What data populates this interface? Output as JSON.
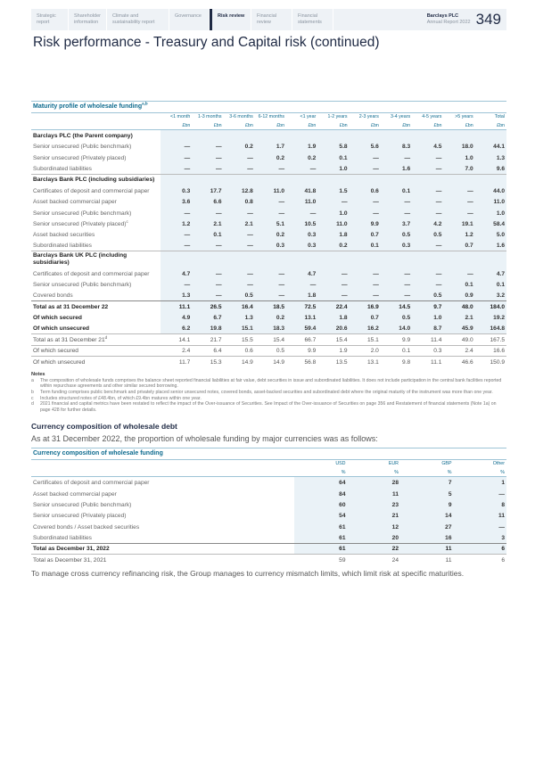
{
  "nav": {
    "items": [
      {
        "label": "Strategic report"
      },
      {
        "label": "Shareholder information"
      },
      {
        "label": "Climate and sustainability report"
      },
      {
        "label": "Governance"
      },
      {
        "label": "Risk review",
        "active": true
      },
      {
        "label": "Financial review"
      },
      {
        "label": "Financial statements"
      }
    ],
    "brand": "Barclays PLC",
    "brand_sub": "Annual Report 2022",
    "page": "349"
  },
  "title": "Risk performance - Treasury and Capital risk (continued)",
  "maturity": {
    "caption": "Maturity profile of wholesale funding",
    "caption_sup": "a,b",
    "columns": [
      "<1 month",
      "1-3 months",
      "3-6 months",
      "6-12 months",
      "<1 year",
      "1-2 years",
      "2-3 years",
      "3-4 years",
      "4-5 years",
      ">5 years",
      "Total"
    ],
    "unit": "£bn",
    "rows": [
      {
        "type": "sec",
        "label": "Barclays PLC (the Parent company)"
      },
      {
        "label": "Senior unsecured (Public benchmark)",
        "values": [
          "—",
          "—",
          "0.2",
          "1.7",
          "1.9",
          "5.8",
          "5.6",
          "8.3",
          "4.5",
          "18.0",
          "44.1"
        ]
      },
      {
        "label": "Senior unsecured (Privately placed)",
        "values": [
          "—",
          "—",
          "—",
          "0.2",
          "0.2",
          "0.1",
          "—",
          "—",
          "—",
          "1.0",
          "1.3"
        ]
      },
      {
        "label": "Subordinated liabilities",
        "values": [
          "—",
          "—",
          "—",
          "—",
          "—",
          "1.0",
          "—",
          "1.6",
          "—",
          "7.0",
          "9.6"
        ]
      },
      {
        "type": "sec",
        "label": "Barclays Bank PLC (including subsidiaries)",
        "bt": true
      },
      {
        "label": "Certificates of deposit and commercial paper",
        "values": [
          "0.3",
          "17.7",
          "12.8",
          "11.0",
          "41.8",
          "1.5",
          "0.6",
          "0.1",
          "—",
          "—",
          "44.0"
        ]
      },
      {
        "label": "Asset backed commercial paper",
        "values": [
          "3.6",
          "6.6",
          "0.8",
          "—",
          "11.0",
          "—",
          "—",
          "—",
          "—",
          "—",
          "11.0"
        ]
      },
      {
        "label": "Senior unsecured (Public benchmark)",
        "values": [
          "—",
          "—",
          "—",
          "—",
          "—",
          "1.0",
          "—",
          "—",
          "—",
          "—",
          "1.0"
        ]
      },
      {
        "label": "Senior unsecured (Privately placed)",
        "sup": "c",
        "values": [
          "1.2",
          "2.1",
          "2.1",
          "5.1",
          "10.5",
          "11.0",
          "9.9",
          "3.7",
          "4.2",
          "19.1",
          "58.4"
        ]
      },
      {
        "label": "Asset backed securities",
        "values": [
          "—",
          "0.1",
          "—",
          "0.2",
          "0.3",
          "1.8",
          "0.7",
          "0.5",
          "0.5",
          "1.2",
          "5.0"
        ]
      },
      {
        "label": "Subordinated liabilities",
        "values": [
          "—",
          "—",
          "—",
          "0.3",
          "0.3",
          "0.2",
          "0.1",
          "0.3",
          "—",
          "0.7",
          "1.6"
        ]
      },
      {
        "type": "sec",
        "label": "Barclays Bank UK PLC (including subsidiaries)",
        "bt": true
      },
      {
        "label": "Certificates of deposit and commercial paper",
        "values": [
          "4.7",
          "—",
          "—",
          "—",
          "4.7",
          "—",
          "—",
          "—",
          "—",
          "—",
          "4.7"
        ]
      },
      {
        "label": "Senior unsecured (Public benchmark)",
        "values": [
          "—",
          "—",
          "—",
          "—",
          "—",
          "—",
          "—",
          "—",
          "—",
          "0.1",
          "0.1"
        ]
      },
      {
        "label": "Covered bonds",
        "values": [
          "1.3",
          "—",
          "0.5",
          "—",
          "1.8",
          "—",
          "—",
          "—",
          "0.5",
          "0.9",
          "3.2"
        ]
      },
      {
        "type": "total",
        "label": "Total as at 31 December 22",
        "values": [
          "11.1",
          "26.5",
          "16.4",
          "18.5",
          "72.5",
          "22.4",
          "16.9",
          "14.5",
          "9.7",
          "48.0",
          "184.0"
        ]
      },
      {
        "type": "bold",
        "label": "Of which secured",
        "values": [
          "4.9",
          "6.7",
          "1.3",
          "0.2",
          "13.1",
          "1.8",
          "0.7",
          "0.5",
          "1.0",
          "2.1",
          "19.2"
        ]
      },
      {
        "type": "bold",
        "label": "Of which unsecured",
        "values": [
          "6.2",
          "19.8",
          "15.1",
          "18.3",
          "59.4",
          "20.6",
          "16.2",
          "14.0",
          "8.7",
          "45.9",
          "164.8"
        ]
      },
      {
        "type": "prior",
        "label": "Total as at 31 December 21",
        "sup": "d",
        "values": [
          "14.1",
          "21.7",
          "15.5",
          "15.4",
          "66.7",
          "15.4",
          "15.1",
          "9.9",
          "11.4",
          "49.0",
          "167.5"
        ]
      },
      {
        "type": "prior",
        "label": "Of which secured",
        "values": [
          "2.4",
          "6.4",
          "0.6",
          "0.5",
          "9.9",
          "1.9",
          "2.0",
          "0.1",
          "0.3",
          "2.4",
          "16.6"
        ]
      },
      {
        "type": "prior",
        "label": "Of which unsecured",
        "values": [
          "11.7",
          "15.3",
          "14.9",
          "14.9",
          "56.8",
          "13.5",
          "13.1",
          "9.8",
          "11.1",
          "46.6",
          "150.9"
        ]
      }
    ]
  },
  "notes": {
    "heading": "Notes",
    "items": [
      {
        "key": "a",
        "text": "The composition of wholesale funds comprises the balance sheet reported financial liabilities at fair value, debt securities in issue and subordinated liabilities. It does not include participation in the central bank facilities reported within repurchase agreements and other similar secured borrowing."
      },
      {
        "key": "b",
        "text": "Term funding comprises public benchmark and privately placed senior unsecured notes, covered bonds, asset-backed securities and subordinated debt where the original maturity of the instrument was more than one year."
      },
      {
        "key": "c",
        "text": "Includes structured notes of £48.4bn, of which £9.4bn matures within one year."
      },
      {
        "key": "d",
        "text": "2021 financial and capital metrics have been restated to reflect the impact of the Over-issuance of Securities. See Impact of the Over-issuance of Securities on page 356 and Restatement of financial statements (Note 1a) on page 428 for further details."
      }
    ]
  },
  "currency": {
    "heading": "Currency composition of wholesale debt",
    "intro": "As at 31 December 2022, the proportion of wholesale funding by major currencies was as follows:",
    "caption": "Currency composition of wholesale funding",
    "columns": [
      "USD",
      "EUR",
      "GBP",
      "Other"
    ],
    "unit": "%",
    "rows": [
      {
        "label": "Certificates of deposit and commercial paper",
        "values": [
          "64",
          "28",
          "7",
          "1"
        ]
      },
      {
        "label": "Asset backed commercial paper",
        "values": [
          "84",
          "11",
          "5",
          "—"
        ]
      },
      {
        "label": "Senior unsecured (Public benchmark)",
        "values": [
          "60",
          "23",
          "9",
          "8"
        ]
      },
      {
        "label": "Senior unsecured (Privately placed)",
        "values": [
          "54",
          "21",
          "14",
          "11"
        ]
      },
      {
        "label": "Covered bonds / Asset backed securities",
        "values": [
          "61",
          "12",
          "27",
          "—"
        ]
      },
      {
        "label": "Subordinated liabilities",
        "values": [
          "61",
          "20",
          "16",
          "3"
        ]
      },
      {
        "type": "total",
        "label": "Total as December 31, 2022",
        "values": [
          "61",
          "22",
          "11",
          "6"
        ]
      },
      {
        "type": "prior",
        "label": "Total as December 31, 2021",
        "values": [
          "59",
          "24",
          "11",
          "6"
        ]
      }
    ]
  },
  "footer": "To manage cross currency refinancing risk, the Group manages to currency mismatch limits, which limit risk at specific maturities."
}
